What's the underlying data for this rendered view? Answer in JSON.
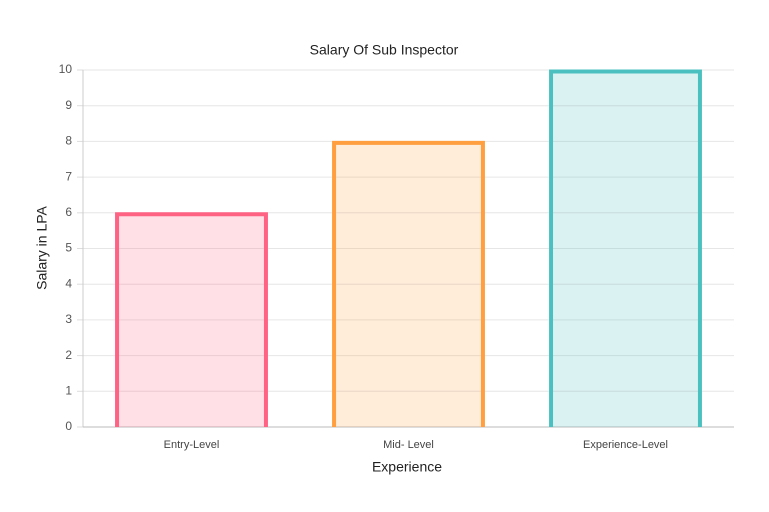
{
  "chart_data": {
    "type": "bar",
    "title": "Salary Of Sub Inspector",
    "x_label": "Experience",
    "y_label": "Salary in LPA",
    "categories": [
      "Entry-Level",
      "Mid- Level",
      "Experience-Level"
    ],
    "values": [
      6,
      8,
      10
    ],
    "colors": [
      "#ff6384",
      "#ff9f40",
      "#4bc0c0"
    ],
    "fill_colors": [
      "rgba(255,99,132,0.2)",
      "rgba(255,159,64,0.2)",
      "rgba(75,192,192,0.2)"
    ],
    "ylim": [
      0,
      10
    ],
    "yticks": [
      0,
      1,
      2,
      3,
      4,
      5,
      6,
      7,
      8,
      9,
      10
    ],
    "grid": true
  }
}
